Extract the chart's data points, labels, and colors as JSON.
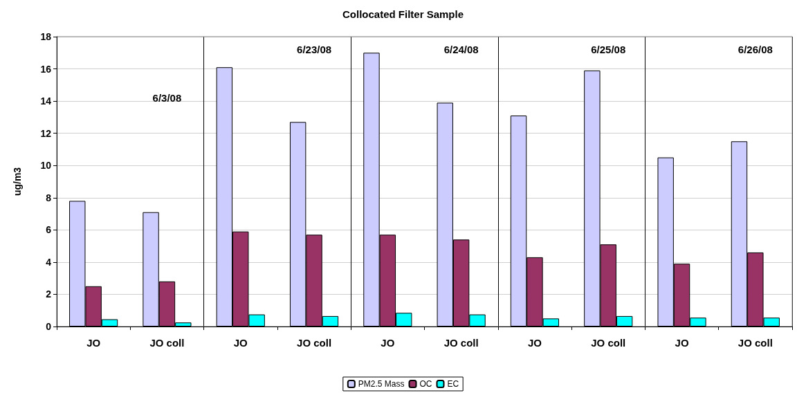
{
  "chart_data": {
    "type": "bar",
    "title": "Collocated Filter Sample",
    "ylabel": "ug/m3",
    "categories": [
      "JO",
      "JO coll",
      "JO",
      "JO coll",
      "JO",
      "JO coll",
      "JO",
      "JO coll",
      "JO",
      "JO coll"
    ],
    "series": [
      {
        "name": "PM2.5 Mass",
        "color": "#ccccff",
        "values": [
          7.8,
          7.1,
          16.1,
          12.7,
          17.0,
          13.9,
          13.1,
          15.9,
          10.5,
          11.5
        ]
      },
      {
        "name": "OC",
        "color": "#993366",
        "values": [
          2.5,
          2.8,
          5.9,
          5.7,
          5.7,
          5.4,
          4.3,
          5.1,
          3.9,
          4.6
        ]
      },
      {
        "name": "EC",
        "color": "#00ffff",
        "values": [
          0.45,
          0.25,
          0.75,
          0.65,
          0.85,
          0.75,
          0.5,
          0.65,
          0.55,
          0.55
        ]
      }
    ],
    "annotations": [
      "6/3/08",
      "6/23/08",
      "6/24/08",
      "6/25/08",
      "6/26/08"
    ],
    "ylim": [
      0,
      18
    ],
    "yticks": [
      0,
      2,
      4,
      6,
      8,
      10,
      12,
      14,
      16,
      18
    ],
    "grid": "y",
    "legend": "bottom"
  }
}
